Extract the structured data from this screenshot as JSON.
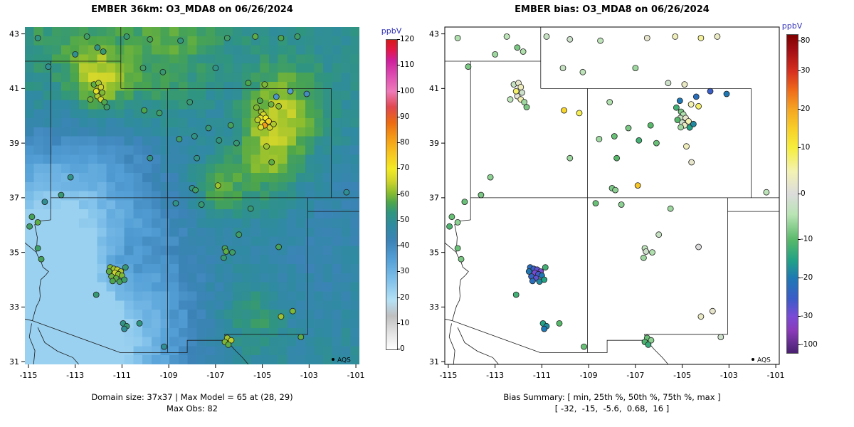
{
  "axes": {
    "lon_range": [
      -115.15,
      -100.85
    ],
    "lat_range": [
      30.9,
      43.25
    ],
    "x_ticks": [
      -115,
      -113,
      -111,
      -109,
      -107,
      -105,
      -103,
      -101
    ],
    "y_ticks": [
      31,
      33,
      35,
      37,
      39,
      41,
      43
    ]
  },
  "style": {
    "unit_color": "#3333bb",
    "border_color": "#1a1a1a",
    "point_stroke": "#1f1f1f",
    "background": "#ffffff"
  },
  "chart_data": [
    {
      "type": "heatmap",
      "title": "EMBER 36km: O3_MDA8 on 06/26/2024",
      "caption1": "Domain size: 37x37 | Max Model = 65 at (28, 29)",
      "caption2": "Max Obs: 82",
      "legend": "AQS",
      "xlim": [
        -115.15,
        -100.85
      ],
      "ylim": [
        30.9,
        43.25
      ],
      "point_value": "obs",
      "colorbar": {
        "unit": "ppbV",
        "min": 0,
        "max": 120,
        "ticks": [
          0,
          10,
          20,
          30,
          40,
          50,
          60,
          70,
          80,
          90,
          100,
          110,
          120
        ],
        "stops": [
          [
            0,
            "#ffffff"
          ],
          [
            7,
            "#e0e0e0"
          ],
          [
            13,
            "#bfbfbf"
          ],
          [
            19,
            "#b5e1f5"
          ],
          [
            27,
            "#7fc0ea"
          ],
          [
            35,
            "#539fd6"
          ],
          [
            42,
            "#3c83b8"
          ],
          [
            48,
            "#2f8ba0"
          ],
          [
            53,
            "#30957f"
          ],
          [
            57,
            "#4da64b"
          ],
          [
            61,
            "#8ebe2e"
          ],
          [
            65,
            "#cdd32c"
          ],
          [
            70,
            "#f3ea25"
          ],
          [
            76,
            "#f7c51f"
          ],
          [
            82,
            "#f49b16"
          ],
          [
            88,
            "#ec6b11"
          ],
          [
            94,
            "#e0474f"
          ],
          [
            100,
            "#ee7ab8"
          ],
          [
            106,
            "#de4fb2"
          ],
          [
            112,
            "#cf1f9c"
          ],
          [
            116,
            "#e4174a"
          ],
          [
            120,
            "#d61a1a"
          ]
        ]
      },
      "raster_model": {
        "nx": 37,
        "ny": 37,
        "base": 50,
        "noise": 2.4,
        "clamp": [
          23,
          66
        ],
        "blobs": [
          [
            -114.8,
            30.6,
            -27,
            4.2
          ],
          [
            -111.9,
            32.9,
            -11,
            2.3
          ],
          [
            -114.9,
            34.9,
            -13,
            2.8
          ],
          [
            -113.6,
            37.0,
            -6,
            1.8
          ],
          [
            -106.2,
            40.6,
            -6,
            1.6
          ],
          [
            -110.3,
            38.6,
            -5,
            1.8
          ],
          [
            -103.0,
            34.2,
            -5,
            2.2
          ],
          [
            -101.3,
            37.6,
            -4,
            1.6
          ],
          [
            -112.0,
            41.3,
            13,
            0.85
          ],
          [
            -104.35,
            40.0,
            16,
            1.25
          ],
          [
            -104.9,
            38.1,
            8,
            1.0
          ],
          [
            -106.9,
            37.4,
            9,
            0.75
          ],
          [
            -111.2,
            34.4,
            11,
            0.95
          ],
          [
            -105.4,
            32.6,
            8,
            0.95
          ],
          [
            -108.2,
            43.0,
            6,
            2.2
          ],
          [
            -113.9,
            42.6,
            5,
            1.8
          ],
          [
            -109.5,
            41.0,
            4,
            1.6
          ]
        ]
      }
    },
    {
      "type": "scatter",
      "title": "EMBER bias: O3_MDA8 on 06/26/2024",
      "caption1": "Bias Summary: [ min, 25th %, 50th %, 75th %, max ]",
      "caption2": "[ -32,  -15,  -5.6,  0.68,  16 ]",
      "legend": "AQS",
      "xlim": [
        -115.15,
        -100.85
      ],
      "ylim": [
        30.9,
        43.25
      ],
      "point_value": "bias",
      "colorbar": {
        "unit": "ppbV",
        "tick_fracs": [
          [
            80,
            0.02
          ],
          [
            30,
            0.115
          ],
          [
            20,
            0.235
          ],
          [
            10,
            0.355
          ],
          [
            0,
            0.5
          ],
          [
            -10,
            0.645
          ],
          [
            -20,
            0.765
          ],
          [
            -30,
            0.885
          ],
          [
            -100,
            0.975
          ]
        ],
        "stops": [
          [
            0.0,
            "#7f0000"
          ],
          [
            0.05,
            "#a50f15"
          ],
          [
            0.115,
            "#d7301f"
          ],
          [
            0.175,
            "#ef6c1a"
          ],
          [
            0.235,
            "#f5a623"
          ],
          [
            0.3,
            "#f8d22a"
          ],
          [
            0.355,
            "#f6ee3c"
          ],
          [
            0.43,
            "#f3f2b4"
          ],
          [
            0.5,
            "#dcdcdc"
          ],
          [
            0.565,
            "#b9e4b4"
          ],
          [
            0.645,
            "#57b86a"
          ],
          [
            0.71,
            "#21a187"
          ],
          [
            0.765,
            "#1f78b4"
          ],
          [
            0.83,
            "#3b5cc8"
          ],
          [
            0.885,
            "#7a4bd6"
          ],
          [
            0.93,
            "#8a3ab8"
          ],
          [
            0.975,
            "#5e2b8a"
          ],
          [
            1.0,
            "#4a1f70"
          ]
        ]
      }
    }
  ],
  "stations": [
    [
      -112.2,
      41.15,
      58,
      -3
    ],
    [
      -112.0,
      41.2,
      62,
      2
    ],
    [
      -111.9,
      41.05,
      65,
      4
    ],
    [
      -111.85,
      40.85,
      60,
      -2
    ],
    [
      -112.05,
      40.72,
      63,
      1
    ],
    [
      -111.9,
      40.6,
      66,
      5
    ],
    [
      -111.75,
      40.5,
      57,
      -6
    ],
    [
      -112.1,
      40.9,
      68,
      8
    ],
    [
      -111.65,
      40.32,
      55,
      -8
    ],
    [
      -112.35,
      40.6,
      59,
      -4
    ],
    [
      -112.5,
      42.9,
      55,
      -4
    ],
    [
      -112.05,
      42.5,
      52,
      -8
    ],
    [
      -113.0,
      42.25,
      50,
      -6
    ],
    [
      -111.8,
      42.35,
      54,
      -5
    ],
    [
      -114.6,
      42.85,
      52,
      -5
    ],
    [
      -114.15,
      41.8,
      50,
      -8
    ],
    [
      -113.6,
      37.1,
      54,
      -8
    ],
    [
      -113.2,
      37.75,
      52,
      -7
    ],
    [
      -114.3,
      36.85,
      50,
      -9
    ],
    [
      -114.85,
      36.3,
      56,
      -9
    ],
    [
      -114.6,
      36.1,
      58,
      -7
    ],
    [
      -114.95,
      35.95,
      55,
      -11
    ],
    [
      -114.6,
      35.15,
      55,
      -9
    ],
    [
      -114.45,
      34.75,
      56,
      -8
    ],
    [
      -110.8,
      42.9,
      54,
      -3
    ],
    [
      -109.8,
      42.8,
      56,
      -2
    ],
    [
      -108.5,
      42.75,
      53,
      -4
    ],
    [
      -106.5,
      42.85,
      55,
      2
    ],
    [
      -105.3,
      42.9,
      58,
      4
    ],
    [
      -104.2,
      42.85,
      57,
      6
    ],
    [
      -103.5,
      42.9,
      55,
      3
    ],
    [
      -110.1,
      41.75,
      55,
      -3
    ],
    [
      -109.25,
      41.6,
      54,
      -4
    ],
    [
      -107.0,
      41.75,
      52,
      -6
    ],
    [
      -105.6,
      41.2,
      57,
      -2
    ],
    [
      -104.9,
      41.15,
      60,
      3
    ],
    [
      -110.05,
      40.2,
      57,
      14
    ],
    [
      -109.4,
      40.1,
      55,
      9
    ],
    [
      -108.55,
      39.15,
      55,
      -6
    ],
    [
      -107.9,
      39.25,
      52,
      -9
    ],
    [
      -107.3,
      39.55,
      54,
      -8
    ],
    [
      -106.35,
      39.65,
      56,
      -10
    ],
    [
      -106.85,
      39.1,
      53,
      -12
    ],
    [
      -106.1,
      39.0,
      54,
      -9
    ],
    [
      -107.8,
      38.45,
      52,
      -10
    ],
    [
      -105.25,
      40.3,
      60,
      -12
    ],
    [
      -105.1,
      40.55,
      57,
      -20
    ],
    [
      -105.05,
      40.15,
      62,
      -8
    ],
    [
      -104.95,
      40.05,
      66,
      -5
    ],
    [
      -105.08,
      39.92,
      68,
      -3
    ],
    [
      -105.2,
      39.85,
      64,
      -10
    ],
    [
      -104.85,
      39.92,
      70,
      2
    ],
    [
      -104.73,
      39.8,
      74,
      5
    ],
    [
      -105.0,
      39.75,
      69,
      -2
    ],
    [
      -104.9,
      39.65,
      82,
      3
    ],
    [
      -105.06,
      39.58,
      67,
      -6
    ],
    [
      -104.68,
      39.57,
      65,
      -15
    ],
    [
      -104.52,
      39.7,
      63,
      -18
    ],
    [
      -104.3,
      40.35,
      61,
      8
    ],
    [
      -104.62,
      40.42,
      59,
      5
    ],
    [
      -104.4,
      40.7,
      38,
      -22
    ],
    [
      -103.8,
      40.9,
      36,
      -25
    ],
    [
      -103.1,
      40.8,
      40,
      -20
    ],
    [
      -104.82,
      38.88,
      62,
      4
    ],
    [
      -104.6,
      38.3,
      58,
      2
    ],
    [
      -106.9,
      37.45,
      62,
      16
    ],
    [
      -108.0,
      37.35,
      53,
      -8
    ],
    [
      -107.86,
      37.28,
      55,
      -7
    ],
    [
      -108.7,
      36.8,
      52,
      -9
    ],
    [
      -107.6,
      36.75,
      54,
      -7
    ],
    [
      -106.6,
      35.15,
      56,
      -4
    ],
    [
      -106.55,
      35.03,
      58,
      -2
    ],
    [
      -106.28,
      35.0,
      55,
      -5
    ],
    [
      -106.65,
      34.8,
      54,
      -6
    ],
    [
      -106.0,
      35.65,
      55,
      -3
    ],
    [
      -104.3,
      35.2,
      56,
      0
    ],
    [
      -105.5,
      36.6,
      54,
      -6
    ],
    [
      -104.2,
      32.65,
      62,
      3
    ],
    [
      -103.7,
      32.85,
      60,
      2
    ],
    [
      -103.35,
      31.9,
      58,
      -2
    ],
    [
      -106.5,
      31.87,
      62,
      -9
    ],
    [
      -106.33,
      31.78,
      64,
      -7
    ],
    [
      -106.6,
      31.72,
      60,
      -11
    ],
    [
      -106.45,
      31.62,
      58,
      -13
    ],
    [
      -111.5,
      34.45,
      60,
      -22
    ],
    [
      -111.35,
      34.4,
      62,
      -25
    ],
    [
      -111.2,
      34.37,
      64,
      -28
    ],
    [
      -111.05,
      34.3,
      63,
      -30
    ],
    [
      -111.3,
      34.25,
      65,
      -32
    ],
    [
      -111.15,
      34.2,
      61,
      -26
    ],
    [
      -111.45,
      34.12,
      59,
      -24
    ],
    [
      -111.0,
      34.15,
      60,
      -20
    ],
    [
      -111.25,
      34.05,
      58,
      -28
    ],
    [
      -111.4,
      33.95,
      57,
      -22
    ],
    [
      -111.1,
      33.93,
      56,
      -18
    ],
    [
      -110.9,
      34.0,
      55,
      -15
    ],
    [
      -111.55,
      34.3,
      58,
      -20
    ],
    [
      -110.85,
      34.45,
      54,
      -12
    ],
    [
      -112.1,
      33.45,
      54,
      -12
    ],
    [
      -110.95,
      32.4,
      52,
      -15
    ],
    [
      -110.8,
      32.3,
      54,
      -18
    ],
    [
      -110.9,
      32.2,
      50,
      -20
    ],
    [
      -110.25,
      32.4,
      53,
      -10
    ],
    [
      -109.2,
      31.55,
      50,
      -9
    ],
    [
      -101.4,
      37.2,
      50,
      -4
    ],
    [
      -109.8,
      38.45,
      53,
      -6
    ],
    [
      -108.1,
      40.5,
      54,
      -5
    ]
  ],
  "borders": [
    [
      [
        -115.15,
        42.0
      ],
      [
        -111.05,
        42.0
      ]
    ],
    [
      [
        -111.05,
        43.25
      ],
      [
        -111.05,
        41.0
      ]
    ],
    [
      [
        -111.05,
        41.0
      ],
      [
        -102.05,
        41.0
      ]
    ],
    [
      [
        -114.05,
        42.0
      ],
      [
        -114.05,
        36.19
      ]
    ],
    [
      [
        -114.05,
        36.19
      ],
      [
        -114.5,
        36.15
      ],
      [
        -114.73,
        36.02
      ],
      [
        -114.62,
        35.55
      ],
      [
        -114.66,
        35.0
      ]
    ],
    [
      [
        -114.05,
        37.0
      ],
      [
        -100.85,
        37.0
      ]
    ],
    [
      [
        -109.05,
        41.0
      ],
      [
        -109.05,
        31.33
      ]
    ],
    [
      [
        -102.05,
        41.0
      ],
      [
        -102.05,
        37.0
      ]
    ],
    [
      [
        -115.15,
        35.35
      ],
      [
        -114.66,
        35.0
      ],
      [
        -114.6,
        34.87
      ],
      [
        -114.47,
        34.7
      ],
      [
        -114.38,
        34.46
      ],
      [
        -114.14,
        34.3
      ],
      [
        -114.26,
        34.17
      ],
      [
        -114.47,
        34.0
      ],
      [
        -114.52,
        33.7
      ],
      [
        -114.5,
        33.4
      ],
      [
        -114.52,
        33.25
      ],
      [
        -114.65,
        33.03
      ],
      [
        -114.72,
        32.84
      ],
      [
        -114.83,
        32.5
      ]
    ],
    [
      [
        -115.15,
        32.56
      ],
      [
        -114.83,
        32.5
      ]
    ],
    [
      [
        -114.83,
        32.5
      ],
      [
        -111.07,
        31.33
      ],
      [
        -108.21,
        31.33
      ],
      [
        -108.21,
        31.78
      ],
      [
        -106.53,
        31.78
      ],
      [
        -106.2,
        31.45
      ],
      [
        -105.85,
        31.15
      ],
      [
        -105.6,
        30.9
      ]
    ],
    [
      [
        -106.62,
        32.0
      ],
      [
        -103.06,
        32.0
      ],
      [
        -103.06,
        37.0
      ]
    ],
    [
      [
        -106.62,
        32.0
      ],
      [
        -106.53,
        31.78
      ]
    ],
    [
      [
        -103.06,
        36.5
      ],
      [
        -100.85,
        36.5
      ]
    ],
    [
      [
        -114.86,
        32.4
      ],
      [
        -114.96,
        31.9
      ],
      [
        -114.72,
        31.4
      ],
      [
        -114.78,
        30.9
      ]
    ],
    [
      [
        -114.6,
        32.25
      ],
      [
        -114.3,
        31.7
      ],
      [
        -113.75,
        31.38
      ],
      [
        -113.1,
        31.15
      ],
      [
        -112.85,
        30.9
      ]
    ]
  ]
}
